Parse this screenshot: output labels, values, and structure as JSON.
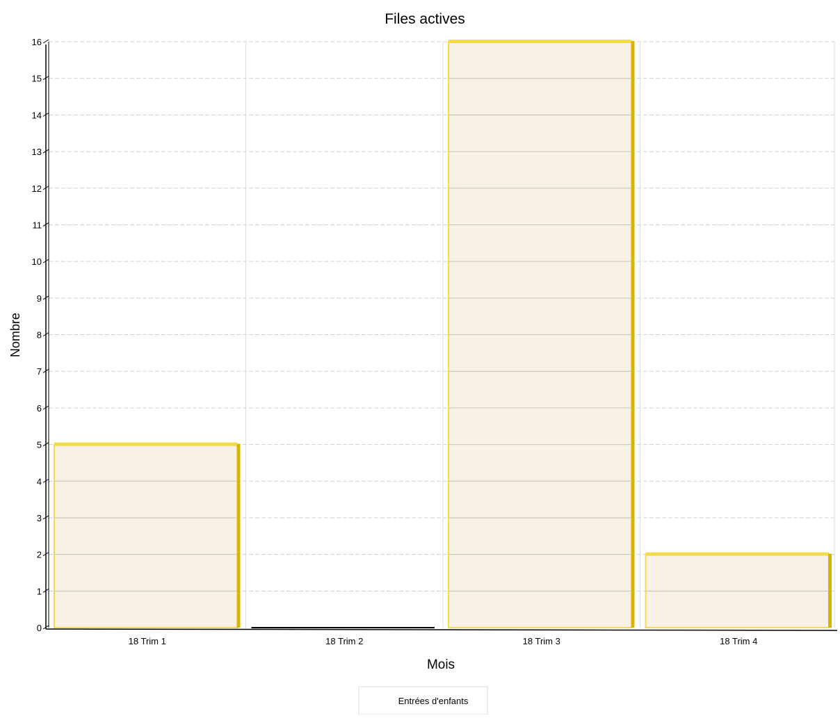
{
  "chart_data": {
    "type": "bar",
    "title": "Files actives",
    "xlabel": "Mois",
    "ylabel": "Nombre",
    "categories": [
      "18 Trim 1",
      "18 Trim 2",
      "18 Trim 3",
      "18 Trim 4"
    ],
    "series": [
      {
        "name": "Entrées d'enfants",
        "values": [
          5,
          0,
          16,
          2
        ]
      }
    ],
    "ylim": [
      0,
      16
    ],
    "yticks": [
      0,
      1,
      2,
      3,
      4,
      5,
      6,
      7,
      8,
      9,
      10,
      11,
      12,
      13,
      14,
      15,
      16
    ],
    "grid": true,
    "legend_position": "bottom-center",
    "colors": {
      "bar_fill": "#f7f1e6",
      "bar_edge": "#f2dc4a",
      "bar_side": "#d9b500",
      "grid": "#cfcfcf",
      "axis": "#000000"
    }
  }
}
